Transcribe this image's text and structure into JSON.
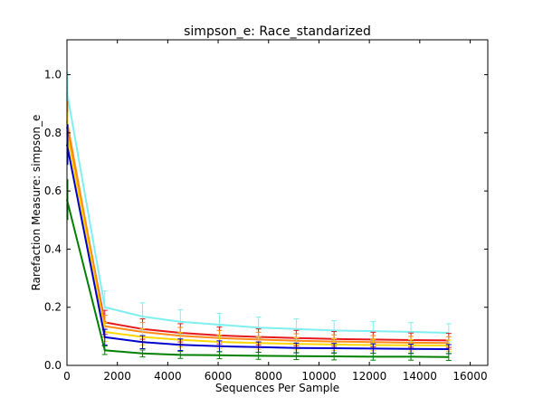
{
  "chart_data": {
    "type": "line",
    "title": "simpson_e: Race_standarized",
    "xlabel": "Sequences Per Sample",
    "ylabel": "Rarefaction Measure: simpson_e",
    "xlim": [
      0,
      16700
    ],
    "ylim": [
      0,
      1.12
    ],
    "xticks": [
      0,
      2000,
      4000,
      6000,
      8000,
      10000,
      12000,
      14000,
      16000
    ],
    "yticks": [
      0.0,
      0.2,
      0.4,
      0.6,
      0.8,
      1.0
    ],
    "x": [
      0,
      1500,
      3000,
      4500,
      6050,
      7600,
      9100,
      10600,
      12150,
      13650,
      15150
    ],
    "grid": false,
    "series": [
      {
        "color": "#7fefef",
        "values": [
          0.94,
          0.2,
          0.168,
          0.15,
          0.14,
          0.13,
          0.125,
          0.12,
          0.118,
          0.115,
          0.112
        ]
      },
      {
        "color": "#e41a1c",
        "values": [
          0.82,
          0.148,
          0.125,
          0.112,
          0.103,
          0.098,
          0.094,
          0.091,
          0.089,
          0.087,
          0.086
        ]
      },
      {
        "color": "#ff8c1a",
        "values": [
          0.84,
          0.135,
          0.115,
          0.102,
          0.094,
          0.089,
          0.085,
          0.082,
          0.08,
          0.078,
          0.077
        ]
      },
      {
        "color": "#ffd700",
        "values": [
          0.8,
          0.115,
          0.098,
          0.088,
          0.081,
          0.077,
          0.074,
          0.072,
          0.07,
          0.069,
          0.068
        ]
      },
      {
        "color": "#0000cc",
        "values": [
          0.76,
          0.097,
          0.08,
          0.071,
          0.066,
          0.063,
          0.06,
          0.059,
          0.058,
          0.057,
          0.056
        ]
      },
      {
        "color": "#008000",
        "values": [
          0.57,
          0.052,
          0.041,
          0.036,
          0.035,
          0.033,
          0.032,
          0.031,
          0.03,
          0.03,
          0.029
        ]
      }
    ]
  }
}
